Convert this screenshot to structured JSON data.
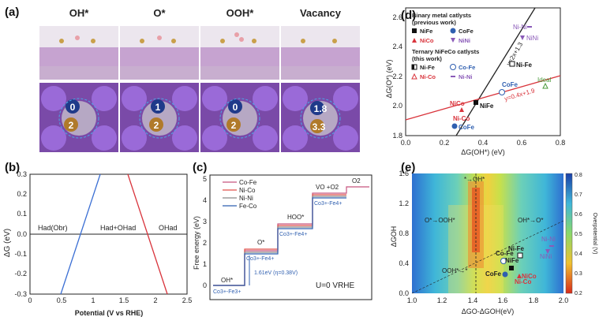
{
  "panel_a": {
    "label": "(a)",
    "columns": [
      {
        "title": "OH*",
        "site_top": "0",
        "site_bottom": "2"
      },
      {
        "title": "O*",
        "site_top": "1",
        "site_bottom": "2"
      },
      {
        "title": "OOH*",
        "site_top": "0",
        "site_bottom": "2"
      },
      {
        "title": "Vacancy",
        "site_top": "1.8",
        "site_bottom": "3.3"
      }
    ]
  },
  "panel_b": {
    "label": "(b)",
    "ylabel": "ΔG (eV)",
    "xlabel": "Potential  (V vs RHE)",
    "yticks": [
      "0.3",
      "0.2",
      "0.1",
      "0.0",
      "-0.1",
      "-0.2",
      "-0.3"
    ],
    "xticks": [
      "0",
      "0.5",
      "1",
      "1.5",
      "2",
      "2.5"
    ],
    "region_left": "Had(Obr)",
    "region_mid": "Had+OHad",
    "region_right": "OHad",
    "colors": {
      "blue_line": "#3b6fd4",
      "red_line": "#d9343c"
    }
  },
  "panel_c": {
    "label": "(c)",
    "ylabel": "Free energy (eV)",
    "yticks": [
      "0",
      "1",
      "2",
      "3",
      "4",
      "5"
    ],
    "legend": [
      {
        "name": "Co-Fe",
        "color": "#c8547e"
      },
      {
        "name": "Ni-Co",
        "color": "#e0504a"
      },
      {
        "name": "Ni-Ni",
        "color": "#8a8a8a"
      },
      {
        "name": "Fe-Co",
        "color": "#2f5fb0"
      }
    ],
    "step_labels": [
      "OH*",
      "O*",
      "HOO*",
      "VO +O2",
      "O2"
    ],
    "ox_labels": [
      "Co3+-Fe3+",
      "Co3+-Fe4+",
      "Co3+-Fe4+",
      "Co3+-Fe4+"
    ],
    "annotation": "1.61eV (η=0.38V)",
    "condition": "U=0 VRHE"
  },
  "panel_d": {
    "label": "(d)",
    "ylabel": "ΔG(O*) (eV)",
    "xlabel": "ΔG(OH*) (eV)",
    "yticks": [
      "1.8",
      "2.0",
      "2.2",
      "2.4",
      "2.6"
    ],
    "xticks": [
      "0.0",
      "0.2",
      "0.4",
      "0.6",
      "0.8"
    ],
    "legend_title1": "Binary metal catlysts",
    "legend_title1b": "(previous work)",
    "legend_binary": [
      "NiFe",
      "CoFe",
      "NiCo",
      "NiNi"
    ],
    "legend_title2": "Ternary NiFeCo catlysts",
    "legend_title2b": "(this work)",
    "legend_ternary": [
      "Ni-Fe",
      "Co-Fe",
      "Ni-Co",
      "Ni-Ni"
    ],
    "fit_black": "y=2x+1.3",
    "fit_red": "y=0.4x+1.9",
    "point_labels": [
      "Ni-Ni",
      "NiNi",
      "Ni-Fe",
      "CoFe",
      "Ideal",
      "NiCo",
      "Ni-Co",
      "NiFe",
      "CoFe"
    ]
  },
  "panel_e": {
    "label": "(e)",
    "ylabel": "ΔGOH",
    "xlabel": "ΔGO-ΔGOH(eV)",
    "colorbar_label": "Overpotential (V)",
    "xticks": [
      "1.0",
      "1.2",
      "1.4",
      "1.6",
      "1.8",
      "2.0"
    ],
    "yticks": [
      "0.0",
      "0.4",
      "0.8",
      "1.2",
      "1.6"
    ],
    "cbticks": [
      "0.8",
      "0.7",
      "0.6",
      "0.5",
      "0.4",
      "0.3",
      "0.2"
    ],
    "region_labels": [
      "*→OH*",
      "O*→OOH*",
      "OH*→O*",
      "OOH*→*"
    ],
    "point_labels": [
      "Co-Fe",
      "Ni-Fe",
      "NiFe",
      "CoFe",
      "NiCo",
      "Ni-Ni",
      "NiNi",
      "Ni-Co"
    ]
  }
}
